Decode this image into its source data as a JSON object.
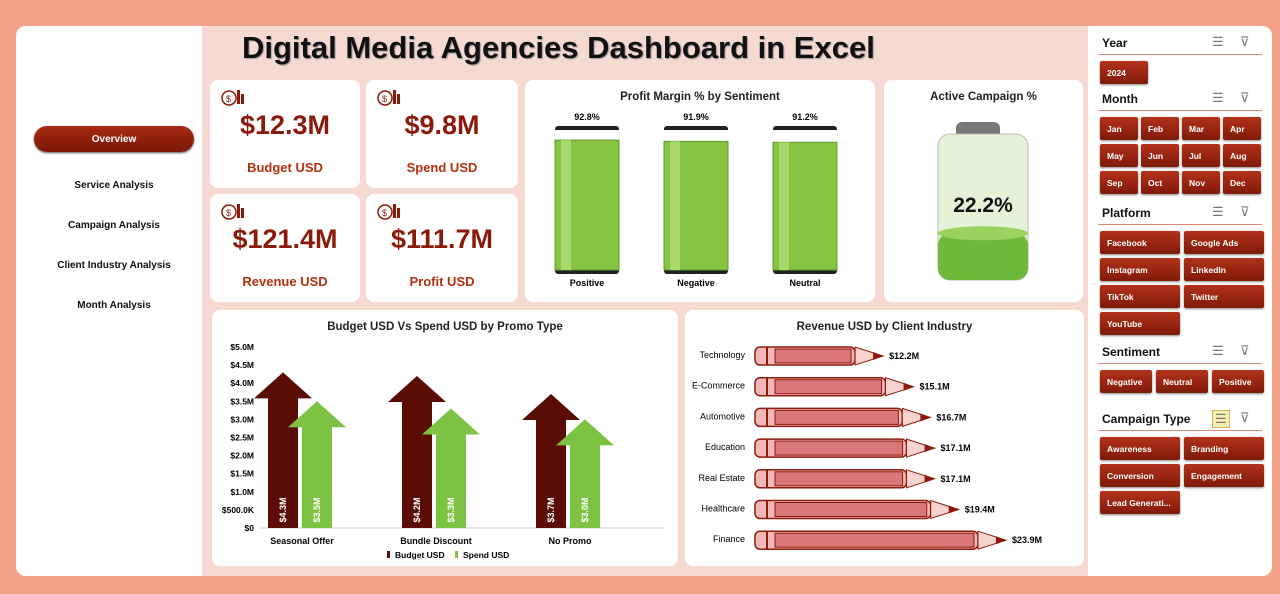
{
  "title": "Digital Media Agencies Dashboard in Excel",
  "nav": [
    {
      "label": "Overview",
      "active": true
    },
    {
      "label": "Service Analysis"
    },
    {
      "label": "Campaign Analysis"
    },
    {
      "label": "Client Industry Analysis"
    },
    {
      "label": "Month Analysis"
    }
  ],
  "kpis": [
    {
      "value": "$12.3M",
      "label": "Budget USD",
      "icon": "budget-icon"
    },
    {
      "value": "$9.8M",
      "label": "Spend USD",
      "icon": "money-bag-icon"
    },
    {
      "value": "$121.4M",
      "label": "Revenue USD",
      "icon": "revenue-chart-icon"
    },
    {
      "value": "$111.7M",
      "label": "Profit USD",
      "icon": "profit-chart-icon"
    }
  ],
  "active_campaign": {
    "title": "Active Campaign %",
    "value": "22.2%",
    "fraction": 0.222
  },
  "colors": {
    "accent": "#8b1a0a",
    "green": "#7dc242",
    "dark_red": "#5a0c05",
    "background": "#f6d9d1"
  },
  "chart_data": [
    {
      "type": "bar",
      "title": "Profit Margin % by Sentiment",
      "categories": [
        "Positive",
        "Negative",
        "Neutral"
      ],
      "values": [
        92.8,
        91.9,
        91.2
      ],
      "labels": [
        "92.8%",
        "91.9%",
        "91.2%"
      ],
      "ylim": [
        0,
        100
      ]
    },
    {
      "type": "bar",
      "title": "Budget USD Vs Spend USD by Promo Type",
      "categories": [
        "Seasonal Offer",
        "Bundle Discount",
        "No Promo"
      ],
      "series": [
        {
          "name": "Budget USD",
          "values": [
            4.3,
            4.2,
            3.7
          ],
          "labels": [
            "$4.3M",
            "$4.2M",
            "$3.7M"
          ],
          "color": "#5a0c05"
        },
        {
          "name": "Spend USD",
          "values": [
            3.5,
            3.3,
            3.0
          ],
          "labels": [
            "$3.5M",
            "$3.3M",
            "$3.0M"
          ],
          "color": "#7dc242"
        }
      ],
      "yticks": [
        "$0",
        "$500.0K",
        "$1.0M",
        "$1.5M",
        "$2.0M",
        "$2.5M",
        "$3.0M",
        "$3.5M",
        "$4.0M",
        "$4.5M",
        "$5.0M"
      ],
      "ylim": [
        0,
        5
      ],
      "legend": "bottom"
    },
    {
      "type": "bar",
      "orientation": "horizontal",
      "title": "Revenue USD by Client Industry",
      "categories": [
        "Technology",
        "E-Commerce",
        "Automotive",
        "Education",
        "Real Estate",
        "Healthcare",
        "Finance"
      ],
      "values": [
        12.2,
        15.1,
        16.7,
        17.1,
        17.1,
        19.4,
        23.9
      ],
      "labels": [
        "$12.2M",
        "$15.1M",
        "$16.7M",
        "$17.1M",
        "$17.1M",
        "$19.4M",
        "$23.9M"
      ]
    }
  ],
  "slicers": [
    {
      "title": "Year",
      "items": [
        "2024"
      ],
      "cols": 1
    },
    {
      "title": "Month",
      "items": [
        "Jan",
        "Feb",
        "Mar",
        "Apr",
        "May",
        "Jun",
        "Jul",
        "Aug",
        "Sep",
        "Oct",
        "Nov",
        "Dec"
      ],
      "cols": 4
    },
    {
      "title": "Platform",
      "items": [
        "Facebook",
        "Google Ads",
        "Instagram",
        "LinkedIn",
        "TikTok",
        "Twitter",
        "YouTube"
      ],
      "cols": 2
    },
    {
      "title": "Sentiment",
      "items": [
        "Negative",
        "Neutral",
        "Positive"
      ],
      "cols": 3
    },
    {
      "title": "Campaign Type",
      "items": [
        "Awareness",
        "Branding",
        "Conversion",
        "Engagement",
        "Lead Generati..."
      ],
      "cols": 2,
      "multiselect_active": true
    }
  ]
}
